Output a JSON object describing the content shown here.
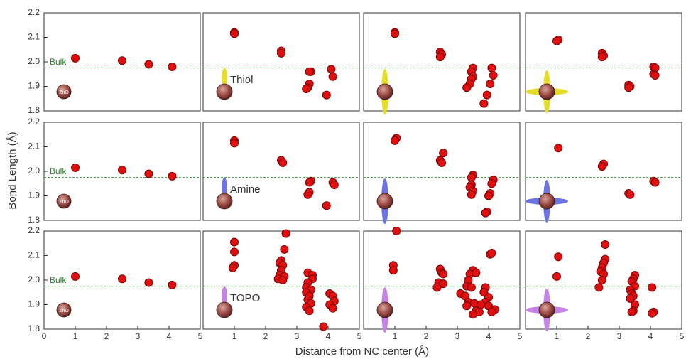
{
  "chart_data": [
    {
      "type": "scatter",
      "x": [
        1.0,
        2.5,
        3.35,
        4.1
      ],
      "y": [
        2.015,
        2.005,
        1.99,
        1.98
      ],
      "color": "#e01010",
      "xlim": [
        0,
        5
      ],
      "ylim": [
        1.8,
        2.2
      ],
      "yticks": [
        1.8,
        1.9,
        {
          "value": 2,
          "label": "2.0"
        },
        2.1,
        2.2
      ],
      "reference_line": 1.975,
      "reference_label": "Bulk",
      "marker_label": "ZnO"
    },
    {
      "type": "scatter",
      "x": [
        1.0,
        1.0,
        2.5,
        2.5,
        3.45,
        3.4,
        3.4,
        3.35,
        3.3,
        4.1,
        4.15,
        3.95
      ],
      "y": [
        2.12,
        2.115,
        2.045,
        2.035,
        1.96,
        1.96,
        1.91,
        1.895,
        1.89,
        1.97,
        1.94,
        1.865
      ],
      "color": "#e01010",
      "xlim": [
        0,
        5
      ],
      "ylim": [
        1.8,
        2.2
      ],
      "reference_line": 1.975,
      "label": "Thiol"
    },
    {
      "type": "scatter",
      "x": [
        1.0,
        1.0,
        2.45,
        2.5,
        2.45,
        3.5,
        3.45,
        3.5,
        3.45,
        3.4,
        3.3,
        4.1,
        4.15,
        4.05,
        3.95,
        3.85
      ],
      "y": [
        2.12,
        2.115,
        2.04,
        2.03,
        2.02,
        1.975,
        1.96,
        1.94,
        1.93,
        1.91,
        1.895,
        1.975,
        1.945,
        1.91,
        1.865,
        1.83
      ],
      "color": "#e01010",
      "xlim": [
        0,
        5
      ],
      "ylim": [
        1.8,
        2.2
      ],
      "reference_line": 1.975
    },
    {
      "type": "scatter",
      "x": [
        1.05,
        1.0,
        2.45,
        2.5,
        2.45,
        3.3,
        3.35,
        3.3,
        4.1,
        4.15,
        4.1,
        4.15
      ],
      "y": [
        2.09,
        2.085,
        2.035,
        2.025,
        2.02,
        1.905,
        1.9,
        1.895,
        1.98,
        1.975,
        1.95,
        1.945
      ],
      "color": "#e01010",
      "xlim": [
        0,
        5
      ],
      "ylim": [
        1.8,
        2.2
      ],
      "reference_line": 1.975
    },
    {
      "type": "scatter",
      "x": [
        1.0,
        2.5,
        3.35,
        4.1
      ],
      "y": [
        2.015,
        2.005,
        1.99,
        1.98
      ],
      "color": "#e01010",
      "xlim": [
        0,
        5
      ],
      "ylim": [
        1.8,
        2.2
      ],
      "yticks": [
        1.8,
        1.9,
        {
          "value": 2,
          "label": "2.0"
        },
        2.1,
        2.2
      ],
      "reference_line": 1.975,
      "reference_label": "Bulk",
      "marker_label": "ZnO",
      "ylabel": "Bond Length (Å)"
    },
    {
      "type": "scatter",
      "x": [
        1.0,
        1.0,
        2.5,
        2.55,
        3.45,
        3.4,
        3.4,
        3.35,
        4.15,
        4.2,
        3.95
      ],
      "y": [
        2.125,
        2.115,
        2.045,
        2.035,
        1.96,
        1.955,
        1.915,
        1.905,
        1.955,
        1.945,
        1.86
      ],
      "color": "#e01010",
      "xlim": [
        0,
        5
      ],
      "ylim": [
        1.8,
        2.2
      ],
      "reference_line": 1.975,
      "label": "Amine"
    },
    {
      "type": "scatter",
      "x": [
        1.05,
        1.0,
        2.55,
        2.45,
        2.5,
        3.5,
        3.45,
        3.45,
        3.4,
        3.5,
        3.45,
        4.15,
        4.1,
        4.05,
        4.0,
        3.95,
        3.9
      ],
      "y": [
        2.135,
        2.125,
        2.075,
        2.045,
        2.035,
        1.985,
        1.975,
        1.945,
        1.935,
        1.92,
        1.905,
        1.965,
        1.95,
        1.91,
        1.9,
        1.835,
        1.83
      ],
      "color": "#e01010",
      "xlim": [
        0,
        5
      ],
      "ylim": [
        1.8,
        2.2
      ],
      "reference_line": 1.975
    },
    {
      "type": "scatter",
      "x": [
        1.05,
        2.5,
        2.45,
        3.3,
        3.35,
        4.1,
        4.15
      ],
      "y": [
        2.095,
        2.03,
        2.02,
        1.91,
        1.905,
        1.96,
        1.955
      ],
      "color": "#e01010",
      "xlim": [
        0,
        5
      ],
      "ylim": [
        1.8,
        2.2
      ],
      "reference_line": 1.975
    },
    {
      "type": "scatter",
      "x": [
        1.0,
        2.5,
        3.35,
        4.1
      ],
      "y": [
        2.015,
        2.005,
        1.99,
        1.98
      ],
      "color": "#e01010",
      "xlim": [
        0,
        5
      ],
      "ylim": [
        1.8,
        2.2
      ],
      "yticks": [
        1.8,
        1.9,
        {
          "value": 2,
          "label": "2.0"
        },
        2.1,
        2.2
      ],
      "xticks": [
        0,
        1,
        2,
        3,
        4,
        5
      ],
      "reference_line": 1.975,
      "reference_label": "Bulk",
      "marker_label": "ZnO"
    },
    {
      "type": "scatter",
      "x": [
        1.0,
        1.0,
        1.0,
        0.95,
        2.65,
        2.6,
        2.5,
        2.45,
        2.55,
        2.5,
        2.45,
        2.6,
        2.4,
        2.55,
        3.35,
        3.5,
        3.5,
        3.35,
        3.3,
        3.45,
        3.3,
        3.4,
        3.35,
        3.45,
        3.3,
        3.4,
        4.05,
        4.15,
        4.2,
        4.05,
        4.15,
        3.85
      ],
      "y": [
        2.155,
        2.115,
        2.06,
        2.05,
        2.19,
        2.125,
        2.08,
        2.07,
        2.06,
        2.04,
        2.02,
        2.015,
        2.005,
        2.0,
        2.03,
        2.02,
        2.005,
        1.99,
        1.97,
        1.96,
        1.95,
        1.935,
        1.92,
        1.905,
        1.89,
        1.875,
        1.945,
        1.935,
        1.915,
        1.9,
        1.885,
        1.81
      ],
      "color": "#e01010",
      "xlim": [
        0,
        5
      ],
      "ylim": [
        1.8,
        2.2
      ],
      "xticks": [
        1,
        2,
        3,
        4,
        5
      ],
      "reference_line": 1.975,
      "label": "TOPO",
      "xlabel": "Distance from NC center (Å)"
    },
    {
      "type": "scatter",
      "x": [
        1.05,
        0.95,
        0.95,
        2.45,
        2.5,
        2.55,
        2.4,
        2.55,
        2.35,
        3.1,
        3.5,
        3.4,
        3.6,
        3.35,
        3.3,
        3.45,
        3.25,
        3.35,
        3.55,
        3.3,
        3.6,
        3.7,
        3.5,
        3.9,
        3.85,
        4.0,
        3.9,
        3.75,
        4.0,
        4.05,
        4.1,
        4.2,
        4.1
      ],
      "y": [
        2.2,
        2.06,
        2.04,
        2.045,
        2.03,
        2.025,
        1.99,
        1.985,
        1.97,
        1.945,
        2.04,
        2.025,
        2.03,
        2.0,
        1.975,
        1.97,
        1.935,
        1.91,
        1.905,
        1.895,
        1.875,
        1.87,
        1.86,
        1.97,
        1.95,
        1.93,
        1.91,
        1.9,
        1.895,
        2.105,
        2.11,
        1.88,
        1.87
      ],
      "color": "#e01010",
      "xlim": [
        0,
        5
      ],
      "ylim": [
        1.8,
        2.2
      ],
      "xticks": [
        1,
        2,
        3,
        4,
        5
      ],
      "reference_line": 1.975
    },
    {
      "type": "scatter",
      "x": [
        1.05,
        1.0,
        2.55,
        2.55,
        2.5,
        2.45,
        2.4,
        2.5,
        2.45,
        2.35,
        3.5,
        3.45,
        3.4,
        3.5,
        3.35,
        3.4,
        3.45,
        3.35,
        3.5,
        3.45,
        3.4,
        4.05,
        4.1,
        4.05
      ],
      "y": [
        2.095,
        2.015,
        2.145,
        2.085,
        2.07,
        2.05,
        2.035,
        2.025,
        2.0,
        1.97,
        2.02,
        2.005,
        1.995,
        1.975,
        1.96,
        1.945,
        1.935,
        1.925,
        1.9,
        1.875,
        1.87,
        1.97,
        1.87,
        1.865
      ],
      "color": "#e01010",
      "xlim": [
        0,
        5
      ],
      "ylim": [
        1.8,
        2.2
      ],
      "xticks": [
        1,
        2,
        3,
        4,
        5
      ],
      "reference_line": 1.975
    }
  ]
}
